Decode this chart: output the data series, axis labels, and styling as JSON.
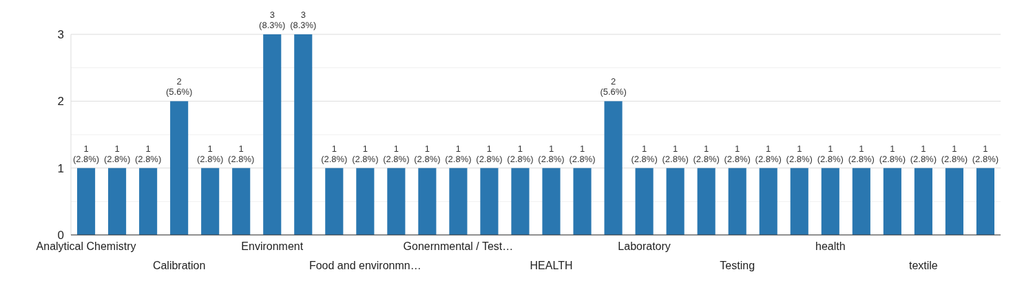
{
  "chart_data": {
    "type": "bar",
    "categories": [
      "Analytical Chemistry",
      null,
      null,
      "Calibration",
      null,
      null,
      "Environment",
      null,
      null,
      "Food and environmn…",
      null,
      null,
      "Gonernmental / Test…",
      null,
      null,
      "HEALTH",
      null,
      null,
      "Laboratory",
      null,
      null,
      "Testing",
      null,
      null,
      "health",
      null,
      null,
      "textile",
      null,
      null
    ],
    "values": [
      1,
      1,
      1,
      2,
      1,
      1,
      3,
      3,
      1,
      1,
      1,
      1,
      1,
      1,
      1,
      1,
      1,
      2,
      1,
      1,
      1,
      1,
      1,
      1,
      1,
      1,
      1,
      1,
      1,
      1
    ],
    "value_labels": [
      "1 (2.8%)",
      "1 (2.8%)",
      "1 (2.8%)",
      "2 (5.6%)",
      "1 (2.8%)",
      "1 (2.8%)",
      "3 (8.3%)",
      "3 (8.3%)",
      "1 (2.8%)",
      "1 (2.8%)",
      "1 (2.8%)",
      "1 (2.8%)",
      "1 (2.8%)",
      "1 (2.8%)",
      "1 (2.8%)",
      "1 (2.8%)",
      "1 (2.8%)",
      "2 (5.6%)",
      "1 (2.8%)",
      "1 (2.8%)",
      "1 (2.8%)",
      "1 (2.8%)",
      "1 (2.8%)",
      "1 (2.8%)",
      "1 (2.8%)",
      "1 (2.8%)",
      "1 (2.8%)",
      "1 (2.8%)",
      "1 (2.8%)",
      "1 (2.8%)"
    ],
    "color": "#2a77b0",
    "ylim": [
      0,
      3
    ],
    "yticks": [
      0,
      {
        "value": 0.5,
        "label": null
      },
      1,
      {
        "value": 1.5,
        "label": null
      },
      2,
      {
        "value": 2.5,
        "label": null
      },
      3
    ],
    "grid": true
  }
}
